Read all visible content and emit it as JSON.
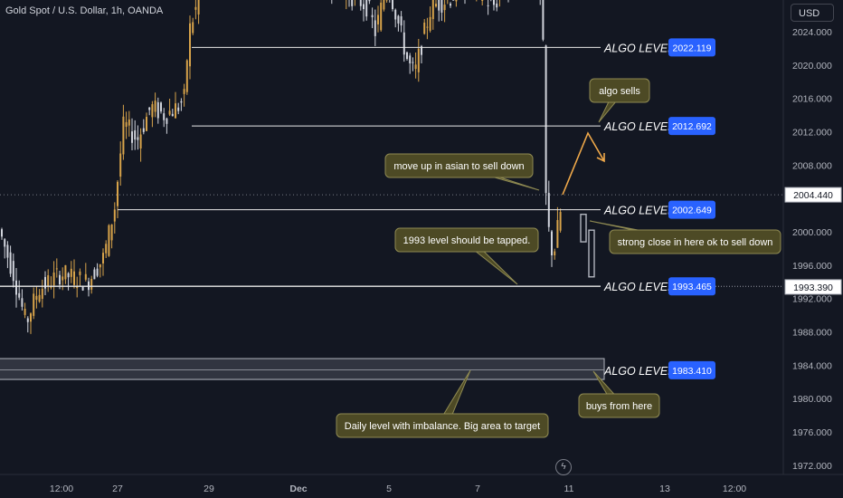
{
  "header": {
    "symbol_title": "Gold Spot / U.S. Dollar, 1h, OANDA"
  },
  "toolbar": {
    "currency": "USD"
  },
  "icons": {
    "replay": "lightning-icon"
  },
  "colors": {
    "background": "#131722",
    "candle_up": "#d7a34a",
    "candle_down": "#d1d4dc",
    "level_badge": "#2962ff",
    "note_fill": "#4d4a25",
    "note_border": "#8f8a52",
    "arrow": "#f0a94a"
  },
  "chart_data": {
    "type": "candlestick",
    "symbol": "Gold Spot / U.S. Dollar",
    "timeframe": "1h",
    "exchange": "OANDA",
    "ylim": [
      1970.5,
      2027.5
    ],
    "y_ticks": [
      "2024.000",
      "2020.000",
      "2016.000",
      "2012.000",
      "2008.000",
      "2004.000",
      "2000.000",
      "1996.000",
      "1992.000",
      "1988.000",
      "1984.000",
      "1980.000",
      "1976.000",
      "1972.000"
    ],
    "x_ticks": [
      "12:00",
      "27",
      "29",
      "Dec",
      "5",
      "7",
      "11",
      "13",
      "12:00"
    ],
    "current_price_label": "2004.440",
    "last_price_label": "1993.390",
    "algo_levels": [
      {
        "label": "ALGO LEVEL",
        "value": "2022.119"
      },
      {
        "label": "ALGO LEVEL",
        "value": "2012.692"
      },
      {
        "label": "ALGO LEVEL",
        "value": "2002.649"
      },
      {
        "label": "ALGO LEVEL",
        "value": "1993.465"
      },
      {
        "label": "ALGO LEVEL",
        "value": "1983.410"
      }
    ],
    "annotations": [
      {
        "text": "algo sells"
      },
      {
        "text": "move up in asian to sell down"
      },
      {
        "text": "1993 level should be tapped."
      },
      {
        "text": "strong close in here ok to sell down"
      },
      {
        "text": "buys from here"
      },
      {
        "text": "Daily level with imbalance. Big area to target"
      }
    ],
    "zone": {
      "low": 1982.3,
      "high": 1984.8
    },
    "projection": [
      {
        "open": 2002.1,
        "close": 1998.8
      },
      {
        "open": 2000.2,
        "close": 1994.6
      }
    ]
  }
}
